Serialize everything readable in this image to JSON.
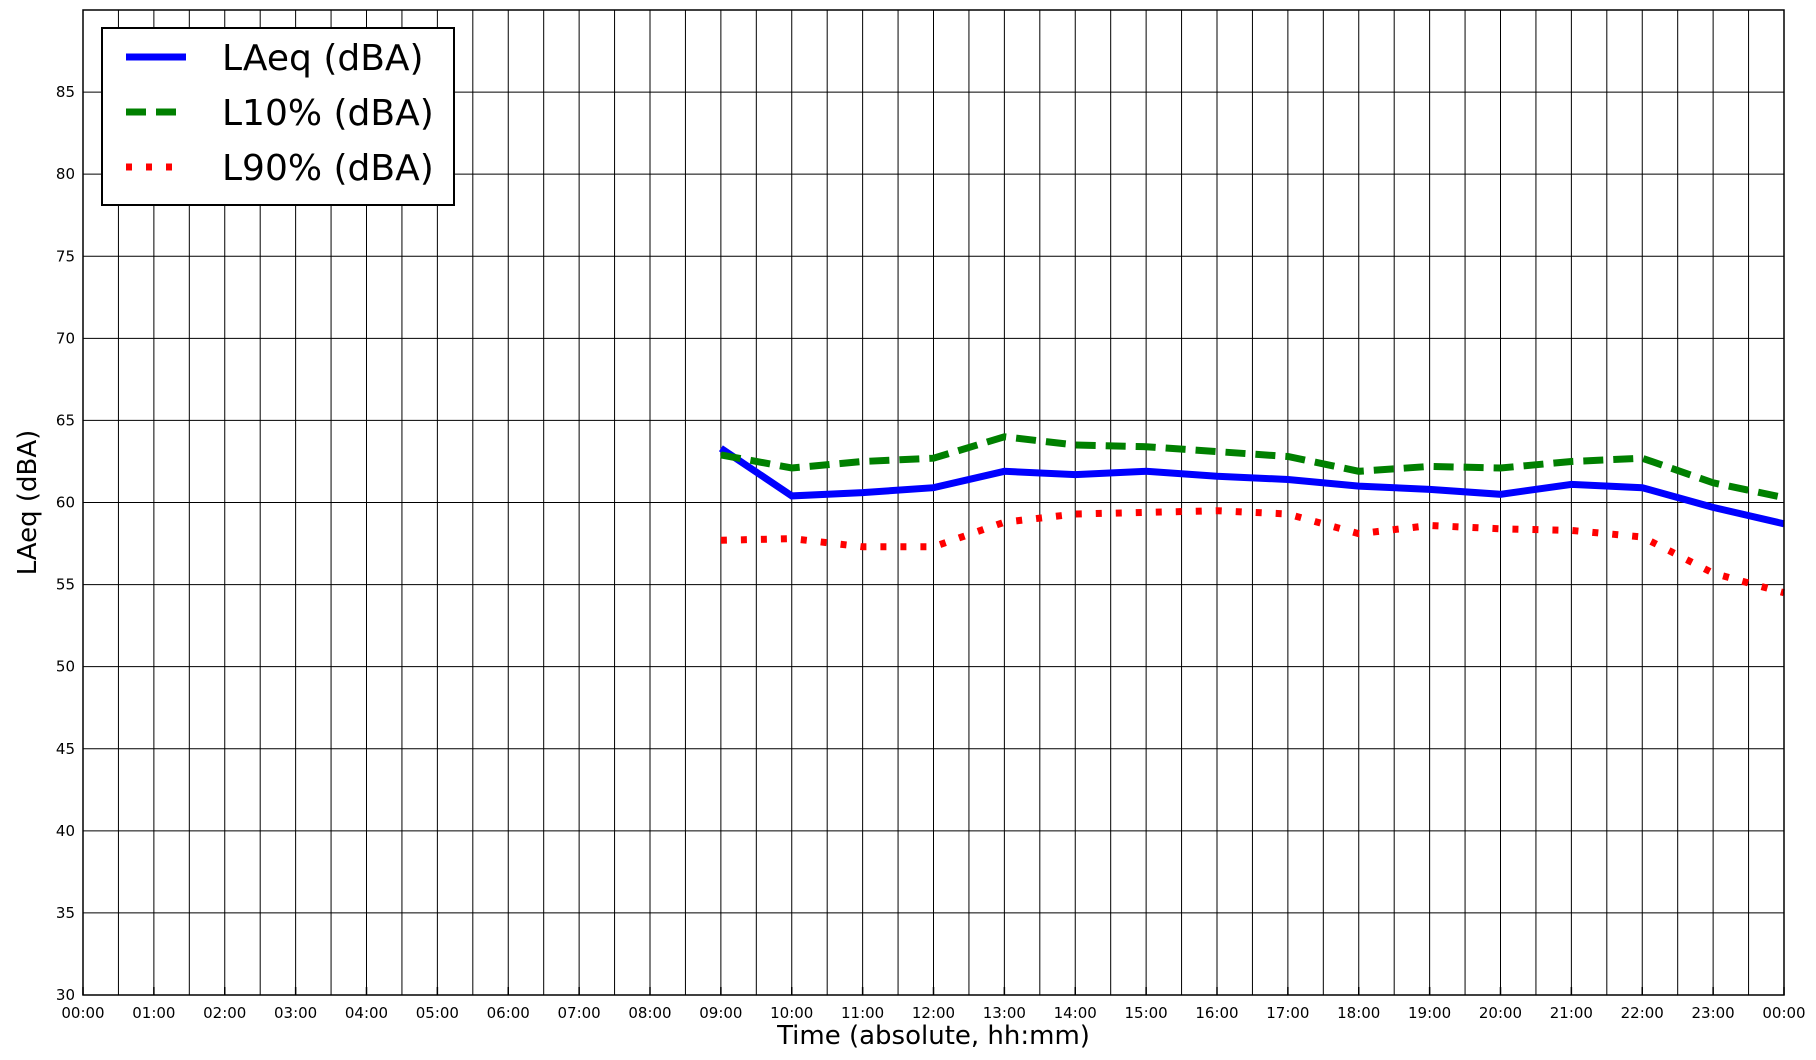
{
  "chart_data": {
    "type": "line",
    "title": "",
    "xlabel": "Time (absolute, hh:mm)",
    "ylabel": "LAeq (dBA)",
    "xlim": [
      0,
      24
    ],
    "ylim": [
      30,
      90
    ],
    "grid": true,
    "legend_position": "top-left",
    "x_ticks": [
      "00:00",
      "01:00",
      "02:00",
      "03:00",
      "04:00",
      "05:00",
      "06:00",
      "07:00",
      "08:00",
      "09:00",
      "10:00",
      "11:00",
      "12:00",
      "13:00",
      "14:00",
      "15:00",
      "16:00",
      "17:00",
      "18:00",
      "19:00",
      "20:00",
      "21:00",
      "22:00",
      "23:00",
      "00:00"
    ],
    "y_ticks": [
      30,
      35,
      40,
      45,
      50,
      55,
      60,
      65,
      70,
      75,
      80,
      85
    ],
    "x": [
      9,
      10,
      11,
      12,
      13,
      14,
      15,
      16,
      17,
      18,
      19,
      20,
      21,
      22,
      23,
      24
    ],
    "series": [
      {
        "name": "LAeq (dBA)",
        "color": "#0000ff",
        "style": "solid",
        "values": [
          63.3,
          60.4,
          60.6,
          60.9,
          61.9,
          61.7,
          61.9,
          61.6,
          61.4,
          61.0,
          60.8,
          60.5,
          61.1,
          60.9,
          59.7,
          58.7
        ]
      },
      {
        "name": "L10% (dBA)",
        "color": "#008000",
        "style": "dashed",
        "values": [
          62.9,
          62.1,
          62.5,
          62.7,
          64.0,
          63.5,
          63.4,
          63.1,
          62.8,
          61.9,
          62.2,
          62.1,
          62.5,
          62.7,
          61.2,
          60.3
        ]
      },
      {
        "name": "L90% (dBA)",
        "color": "#ff0000",
        "style": "dotted",
        "values": [
          57.7,
          57.8,
          57.3,
          57.3,
          58.8,
          59.3,
          59.4,
          59.5,
          59.3,
          58.1,
          58.6,
          58.4,
          58.3,
          57.9,
          55.7,
          54.5
        ]
      }
    ]
  }
}
